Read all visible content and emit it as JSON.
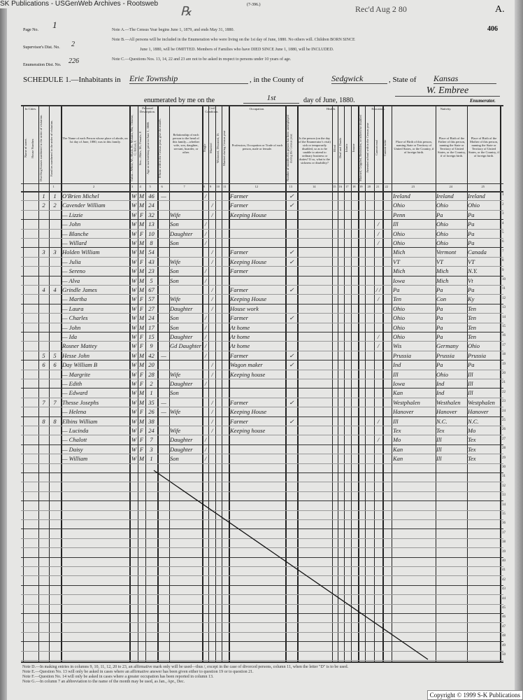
{
  "source_banner": "SK Publications - USGenWeb Archives - Rootsweb",
  "form_number": "(7-396.)",
  "stamp": "Rec'd Aug 2 80",
  "corner_letter": "A.",
  "corner_number": "406",
  "page_no_label": "Page No.",
  "page_no": "1",
  "supervisor_label": "Supervisor's Dist. No.",
  "supervisor_dist": "2",
  "enumeration_label": "Enumeration Dist. No.",
  "enumeration_dist": "226",
  "notes_top": [
    "Note A.—The Census Year begins June 1, 1879, and ends May 31, 1880.",
    "Note B.—All persons will be included in the Enumeration who were living on the 1st day of June, 1880. No others will. Children BORN SINCE",
    "June 1, 1880, will be OMITTED. Members of Families who have DIED SINCE June 1, 1880, will be INCLUDED.",
    "Note C.—Questions Nos. 13, 14, 22 and 23 are not to be asked in respect to persons under 10 years of age."
  ],
  "schedule": {
    "label": "SCHEDULE 1.—Inhabitants in",
    "place": "Erie Township",
    "county_label": ", in the County of",
    "county": "Sedgwick",
    "state_label": ", State of",
    "state": "Kansas",
    "enum_label": "enumerated by me on the",
    "day": "1st",
    "enum_suffix": "day of June, 1880.",
    "enumerator": "W. Embree",
    "enumerator_label": "Enumerator."
  },
  "headers": {
    "in_cities": "In Cities.",
    "street": "Name of street.",
    "house": "House Number.",
    "dwelling": "Dwelling-houses numbered in the order of visitation.",
    "family": "Families numbered in the order of visitation.",
    "name": "The Name of each Person whose place of abode, on 1st day of June, 1880, was in this family.",
    "personal": "Personal Description.",
    "color": "Color—White, W.; Black, B.; Mulatto, Mu; Chinese, C; Indian, I.",
    "sex": "Sex—Male, M.; Female, F.",
    "age": "Age at last birthday prior to June 1, 1880.",
    "month_born": "If born within the Census year, give the month.",
    "relationship": "Relationship of each person to the head of this family—whether wife, son, daughter, servant, boarder, or other.",
    "civil": "Civil Condition.",
    "single": "Single",
    "married": "Married",
    "widowed": "Widowed, Divorced, D.",
    "married_year": "Married during Census year",
    "occupation": "Occupation.",
    "profession": "Profession, Occupation or Trade of each person, male or female.",
    "months_unemployed": "Number of months this person has been unemployed during the Census year.",
    "health": "Health.",
    "sick": "Is the person (on the day of the Enumerator's visit) sick or temporarily disabled, so as to be unable to attend to ordinary business or duties? If so, what is the sickness or disability?",
    "blind": "Blind",
    "deaf": "Deaf and Dumb",
    "idiotic": "Idiotic",
    "insane": "Insane",
    "maimed": "Maimed, Crippled, Bedridden, or otherwise disabled",
    "education": "Education.",
    "school": "Attended school within the Census year",
    "cannot_read": "Cannot read",
    "cannot_write": "Cannot write",
    "nativity": "Nativity.",
    "birthplace": "Place of Birth of this person, naming State or Territory of United States, or the Country, if of foreign birth.",
    "father_birth": "Place of Birth of the Father of this person, naming the State or Territory of United States, or the Country, if of foreign birth.",
    "mother_birth": "Place of Birth of the Mother of this person, naming the State or Territory of United States, or the Country, if of foreign birth."
  },
  "rows": [
    {
      "dw": "1",
      "fam": "1",
      "name": "O'Brien Michel",
      "color": "W",
      "sex": "M",
      "age": "46",
      "m7": "—",
      "rel": "",
      "s": "/",
      "m": "",
      "occ": "Farmer",
      "c14": "✓",
      "edu": "",
      "birth": "Ireland",
      "father": "Ireland",
      "mother": "Ireland"
    },
    {
      "dw": "2",
      "fam": "2",
      "name": "Cavender William",
      "color": "W",
      "sex": "M",
      "age": "24",
      "m7": "",
      "rel": "",
      "s": "",
      "m": "/",
      "occ": "Farmer",
      "c14": "✓",
      "edu": "",
      "birth": "Ohio",
      "father": "Ohio",
      "mother": "Ohio"
    },
    {
      "dw": "",
      "fam": "",
      "name": "— Lizzie",
      "color": "W",
      "sex": "F",
      "age": "32",
      "m7": "",
      "rel": "Wife",
      "s": "",
      "m": "/",
      "occ": "Keeping House",
      "c14": "",
      "edu": "",
      "birth": "Penn",
      "father": "Pa",
      "mother": "Pa"
    },
    {
      "dw": "",
      "fam": "",
      "name": "— John",
      "color": "W",
      "sex": "M",
      "age": "13",
      "m7": "",
      "rel": "Son",
      "s": "/",
      "m": "",
      "occ": "",
      "c14": "",
      "edu": "/",
      "birth": "Ill",
      "father": "Ohio",
      "mother": "Pa"
    },
    {
      "dw": "",
      "fam": "",
      "name": "— Blanche",
      "color": "W",
      "sex": "F",
      "age": "10",
      "m7": "",
      "rel": "Daughter",
      "s": "/",
      "m": "",
      "occ": "",
      "c14": "",
      "edu": "/",
      "birth": "Ohio",
      "father": "Ohio",
      "mother": "Pa"
    },
    {
      "dw": "",
      "fam": "",
      "name": "— Willard",
      "color": "W",
      "sex": "M",
      "age": "8",
      "m7": "",
      "rel": "Son",
      "s": "/",
      "m": "",
      "occ": "",
      "c14": "",
      "edu": "/",
      "birth": "Ohio",
      "father": "Ohio",
      "mother": "Pa"
    },
    {
      "dw": "3",
      "fam": "3",
      "name": "Holden William",
      "color": "W",
      "sex": "M",
      "age": "54",
      "m7": "",
      "rel": "",
      "s": "",
      "m": "/",
      "occ": "Farmer",
      "c14": "✓",
      "edu": "",
      "birth": "Mich",
      "father": "Vermont",
      "mother": "Canada"
    },
    {
      "dw": "",
      "fam": "",
      "name": "— Julia",
      "color": "W",
      "sex": "F",
      "age": "43",
      "m7": "",
      "rel": "Wife",
      "s": "",
      "m": "/",
      "occ": "Keeping House",
      "c14": "✓",
      "edu": "",
      "birth": "VT",
      "father": "VT",
      "mother": "VT"
    },
    {
      "dw": "",
      "fam": "",
      "name": "— Sereno",
      "color": "W",
      "sex": "M",
      "age": "23",
      "m7": "",
      "rel": "Son",
      "s": "/",
      "m": "",
      "occ": "Farmer",
      "c14": "",
      "edu": "",
      "birth": "Mich",
      "father": "Mich",
      "mother": "N.Y."
    },
    {
      "dw": "",
      "fam": "",
      "name": "— Alva",
      "color": "W",
      "sex": "M",
      "age": "5",
      "m7": "",
      "rel": "Son",
      "s": "/",
      "m": "",
      "occ": "",
      "c14": "",
      "edu": "",
      "birth": "Iowa",
      "father": "Mich",
      "mother": "Vt"
    },
    {
      "dw": "4",
      "fam": "4",
      "name": "Grindle James",
      "color": "W",
      "sex": "M",
      "age": "67",
      "m7": "",
      "rel": "",
      "s": "",
      "m": "/",
      "occ": "Farmer",
      "c14": "✓",
      "edu": "/ /",
      "birth": "Pa",
      "father": "Pa",
      "mother": "Pa"
    },
    {
      "dw": "",
      "fam": "",
      "name": "— Martha",
      "color": "W",
      "sex": "F",
      "age": "57",
      "m7": "",
      "rel": "Wife",
      "s": "",
      "m": "/",
      "occ": "Keeping House",
      "c14": "",
      "edu": "/",
      "birth": "Ten",
      "father": "Con",
      "mother": "Ky"
    },
    {
      "dw": "",
      "fam": "",
      "name": "— Laura",
      "color": "W",
      "sex": "F",
      "age": "27",
      "m7": "",
      "rel": "Daughter",
      "s": "",
      "m": "/",
      "occ": "House work",
      "c14": "",
      "edu": "",
      "birth": "Ohio",
      "father": "Pa",
      "mother": "Ten"
    },
    {
      "dw": "",
      "fam": "",
      "name": "— Charles",
      "color": "W",
      "sex": "M",
      "age": "24",
      "m7": "",
      "rel": "Son",
      "s": "/",
      "m": "",
      "occ": "Farmer",
      "c14": "✓",
      "edu": "",
      "birth": "Ohio",
      "father": "Pa",
      "mother": "Ten"
    },
    {
      "dw": "",
      "fam": "",
      "name": "— John",
      "color": "W",
      "sex": "M",
      "age": "17",
      "m7": "",
      "rel": "Son",
      "s": "/",
      "m": "",
      "occ": "At home",
      "c14": "",
      "edu": "",
      "birth": "Ohio",
      "father": "Pa",
      "mother": "Ten"
    },
    {
      "dw": "",
      "fam": "",
      "name": "— Ida",
      "color": "W",
      "sex": "F",
      "age": "15",
      "m7": "",
      "rel": "Daughter",
      "s": "/",
      "m": "",
      "occ": "At home",
      "c14": "",
      "edu": "/",
      "birth": "Ohio",
      "father": "Pa",
      "mother": "Ten"
    },
    {
      "dw": "",
      "fam": "",
      "name": "Rosner Mattey",
      "color": "W",
      "sex": "F",
      "age": "9",
      "m7": "",
      "rel": "Gd Daughter",
      "s": "/",
      "m": "",
      "occ": "At home",
      "c14": "",
      "edu": "/",
      "birth": "Wis",
      "father": "Germany",
      "mother": "Ohio"
    },
    {
      "dw": "5",
      "fam": "5",
      "name": "Hesse John",
      "color": "W",
      "sex": "M",
      "age": "42",
      "m7": "—",
      "rel": "",
      "s": "/",
      "m": "",
      "occ": "Farmer",
      "c14": "✓",
      "edu": "",
      "birth": "Prussia",
      "father": "Prussia",
      "mother": "Prussia"
    },
    {
      "dw": "6",
      "fam": "6",
      "name": "Day William B",
      "color": "W",
      "sex": "M",
      "age": "20",
      "m7": "",
      "rel": "",
      "s": "",
      "m": "/",
      "occ": "Wagon maker",
      "c14": "✓",
      "edu": "",
      "birth": "Ind",
      "father": "Pa",
      "mother": "Pa"
    },
    {
      "dw": "",
      "fam": "",
      "name": "— Margrite",
      "color": "W",
      "sex": "F",
      "age": "28",
      "m7": "",
      "rel": "Wife",
      "s": "",
      "m": "/",
      "occ": "Keeping house",
      "c14": "",
      "edu": "",
      "birth": "Ill",
      "father": "Ohio",
      "mother": "Ill"
    },
    {
      "dw": "",
      "fam": "",
      "name": "— Edith",
      "color": "W",
      "sex": "F",
      "age": "2",
      "m7": "",
      "rel": "Daughter",
      "s": "/",
      "m": "",
      "occ": "",
      "c14": "",
      "edu": "",
      "birth": "Iowa",
      "father": "Ind",
      "mother": "Ill"
    },
    {
      "dw": "",
      "fam": "",
      "name": "— Edward",
      "color": "W",
      "sex": "M",
      "age": "1",
      "m7": "",
      "rel": "Son",
      "s": "",
      "m": "",
      "occ": "",
      "c14": "",
      "edu": "",
      "birth": "Kan",
      "father": "Ind",
      "mother": "Ill"
    },
    {
      "dw": "7",
      "fam": "7",
      "name": "Thesse Josephs",
      "color": "W",
      "sex": "M",
      "age": "35",
      "m7": "—",
      "rel": "",
      "s": "",
      "m": "/",
      "occ": "Farmer",
      "c14": "✓",
      "edu": "",
      "birth": "Westphalen",
      "father": "Westhalen",
      "mother": "Westphalen"
    },
    {
      "dw": "",
      "fam": "",
      "name": "— Helena",
      "color": "W",
      "sex": "F",
      "age": "26",
      "m7": "—",
      "rel": "Wife",
      "s": "",
      "m": "/",
      "occ": "Keeping House",
      "c14": "",
      "edu": "",
      "birth": "Hanover",
      "father": "Hanover",
      "mother": "Hanover"
    },
    {
      "dw": "8",
      "fam": "8",
      "name": "Elbins William",
      "color": "W",
      "sex": "M",
      "age": "38",
      "m7": "",
      "rel": "",
      "s": "",
      "m": "/",
      "occ": "Farmer",
      "c14": "✓",
      "edu": "/",
      "birth": "Ill",
      "father": "N.C.",
      "mother": "N.C."
    },
    {
      "dw": "",
      "fam": "",
      "name": "— Lucinda",
      "color": "W",
      "sex": "F",
      "age": "24",
      "m7": "",
      "rel": "Wife",
      "s": "",
      "m": "/",
      "occ": "Keeping house",
      "c14": "",
      "edu": "",
      "birth": "Tex",
      "father": "Tex",
      "mother": "Mo"
    },
    {
      "dw": "",
      "fam": "",
      "name": "— Chalott",
      "color": "W",
      "sex": "F",
      "age": "7",
      "m7": "",
      "rel": "Daughter",
      "s": "/",
      "m": "",
      "occ": "",
      "c14": "",
      "edu": "/",
      "birth": "Mo",
      "father": "Ill",
      "mother": "Tex"
    },
    {
      "dw": "",
      "fam": "",
      "name": "— Daisy",
      "color": "W",
      "sex": "F",
      "age": "3",
      "m7": "",
      "rel": "Daughter",
      "s": "/",
      "m": "",
      "occ": "",
      "c14": "",
      "edu": "",
      "birth": "Kan",
      "father": "Ill",
      "mother": "Tex"
    },
    {
      "dw": "",
      "fam": "",
      "name": "— William",
      "color": "W",
      "sex": "M",
      "age": "1",
      "m7": "",
      "rel": "Son",
      "s": "/",
      "m": "",
      "occ": "",
      "c14": "",
      "edu": "",
      "birth": "Kan",
      "father": "Ill",
      "mother": "Tex"
    }
  ],
  "notes_bottom": [
    "Note D.—In making entries in columns 9, 10, 11, 12, 20 to 23, an affirmative mark only will be used—thus /, except in the case of divorced persons, column 11, when the letter \"D\" is to be used.",
    "Note E.—Question No. 13 will only be asked in cases where an affirmative answer has been given either to question 19 or to question 21.",
    "Note F.—Question No. 14 will only be asked in cases where a greater occupation has been reported in column 13.",
    "Note G.—In column 7 an abbreviation to the name of the month may be used, as Jan., Apr., Dec."
  ],
  "copyright": "Copyright © 1999 S-K Publications"
}
